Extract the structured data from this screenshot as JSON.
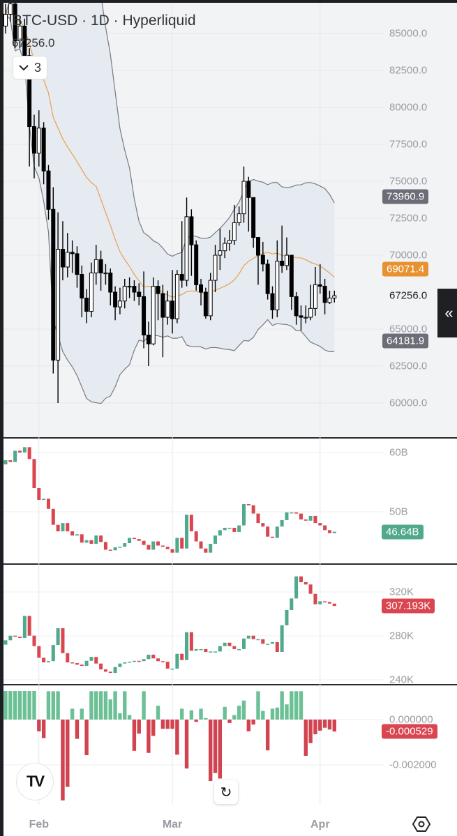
{
  "legend": {
    "title": "BTC-USD · 1D · Hyperliquid",
    "price": "67256.0",
    "collapse_count": "3"
  },
  "icons": {
    "collapse": "chevron-down-icon",
    "side": "double-chevron-left-icon",
    "logo": "tradingview-logo",
    "reset": "reset-icon",
    "settings": "settings-hexagon-icon"
  },
  "side_button_label": "«",
  "logo_text": "TV",
  "reset_glyph": "↻",
  "time_axis": [
    {
      "label": "Feb",
      "day": 7
    },
    {
      "label": "Mar",
      "day": 35
    },
    {
      "label": "Apr",
      "day": 66
    }
  ],
  "colors": {
    "bull_body": "#ffffff",
    "bear_body": "#000000",
    "basis": "#e8a04a",
    "bands": "#777a80",
    "band_fill": "#e6ebf2",
    "up": "#4fa98a",
    "down": "#d9464f",
    "hist_up": "#6cc096",
    "hist_down": "#d0434f",
    "upper_badge": "#6b6e76",
    "basis_badge": "#e8922f"
  },
  "chart_data": [
    {
      "type": "candlestick",
      "title": "BTC-USD · 1D · Hyperliquid",
      "ylim": [
        58500,
        87000
      ],
      "ticks": [
        "85000.0",
        "82500.0",
        "80000.0",
        "77500.0",
        "75000.0",
        "72500.0",
        "70000.0",
        "65000.0",
        "62500.0",
        "60000.0"
      ],
      "tick_values": [
        85000,
        82500,
        80000,
        77500,
        75000,
        72500,
        70000,
        65000,
        62500,
        60000
      ],
      "indicator": "Bollinger Bands",
      "badges": {
        "upper": "73960.9",
        "basis": "69071.4",
        "last": "67256.0",
        "lower": "64181.9"
      },
      "badge_values": {
        "upper": 73960.9,
        "basis": 69071.4,
        "last": 67256.0,
        "lower": 64181.9
      },
      "ohlc": [
        [
          85500,
          87000,
          85000,
          86300
        ],
        [
          86300,
          87800,
          85800,
          87000
        ],
        [
          87000,
          87200,
          84000,
          84500
        ],
        [
          84500,
          86000,
          84000,
          85500
        ],
        [
          85500,
          86000,
          82800,
          83500
        ],
        [
          83500,
          84000,
          76000,
          78700
        ],
        [
          78700,
          79500,
          75200,
          76900
        ],
        [
          76900,
          79800,
          76000,
          78600
        ],
        [
          78600,
          79000,
          74800,
          75700
        ],
        [
          75700,
          76100,
          72400,
          73100
        ],
        [
          73100,
          74600,
          62000,
          62900
        ],
        [
          62900,
          72900,
          60000,
          70400
        ],
        [
          70400,
          72300,
          68300,
          69200
        ],
        [
          69200,
          71500,
          68500,
          70200
        ],
        [
          70200,
          71000,
          68800,
          70100
        ],
        [
          70100,
          70600,
          67800,
          68700
        ],
        [
          68700,
          69300,
          65800,
          67100
        ],
        [
          67100,
          67700,
          65400,
          66200
        ],
        [
          66200,
          69500,
          65800,
          68800
        ],
        [
          68800,
          70700,
          68000,
          69700
        ],
        [
          69700,
          70300,
          67600,
          68800
        ],
        [
          68800,
          69400,
          68000,
          68800
        ],
        [
          68800,
          69100,
          66600,
          67500
        ],
        [
          67500,
          67900,
          65600,
          66500
        ],
        [
          66500,
          67800,
          66000,
          66900
        ],
        [
          66900,
          68400,
          66400,
          67900
        ],
        [
          67900,
          68500,
          67100,
          67900
        ],
        [
          67900,
          68300,
          66900,
          67500
        ],
        [
          67500,
          68100,
          66600,
          67200
        ],
        [
          67200,
          68900,
          63700,
          64600
        ],
        [
          64600,
          65500,
          62500,
          64000
        ],
        [
          64000,
          68500,
          63900,
          67900
        ],
        [
          67900,
          68300,
          65600,
          67400
        ],
        [
          67400,
          68000,
          63100,
          65800
        ],
        [
          65800,
          67600,
          65300,
          66900
        ],
        [
          66900,
          69000,
          64700,
          65700
        ],
        [
          65700,
          69000,
          65400,
          68700
        ],
        [
          68700,
          72300,
          67800,
          68300
        ],
        [
          68300,
          73900,
          67900,
          72600
        ],
        [
          72600,
          73100,
          68600,
          70700
        ],
        [
          70700,
          71000,
          67600,
          68000
        ],
        [
          68000,
          68400,
          66600,
          67500
        ],
        [
          67500,
          67800,
          65700,
          65900
        ],
        [
          65900,
          68800,
          65600,
          68300
        ],
        [
          68300,
          70700,
          67500,
          70000
        ],
        [
          70000,
          71800,
          69000,
          70300
        ],
        [
          70300,
          71200,
          69800,
          70800
        ],
        [
          70800,
          71700,
          70300,
          71000
        ],
        [
          71000,
          73400,
          70700,
          72200
        ],
        [
          72200,
          73300,
          72000,
          72800
        ],
        [
          72800,
          76000,
          72200,
          75000
        ],
        [
          75000,
          75300,
          71600,
          73900
        ],
        [
          73900,
          73900,
          70500,
          71200
        ],
        [
          71200,
          71200,
          68000,
          70000
        ],
        [
          70000,
          70900,
          68900,
          69400
        ],
        [
          69400,
          69700,
          67000,
          67400
        ],
        [
          67400,
          67900,
          65700,
          66300
        ],
        [
          66300,
          71000,
          65800,
          69600
        ],
        [
          69600,
          72000,
          68800,
          69300
        ],
        [
          69300,
          71200,
          69000,
          70000
        ],
        [
          70000,
          70000,
          66300,
          67200
        ],
        [
          67200,
          67500,
          65300,
          65900
        ],
        [
          65900,
          66600,
          64900,
          65800
        ],
        [
          65800,
          66600,
          65400,
          65800
        ],
        [
          65800,
          68000,
          65600,
          66400
        ],
        [
          66400,
          69200,
          65900,
          68000
        ],
        [
          68000,
          69400,
          67400,
          67900
        ],
        [
          67900,
          68400,
          66000,
          66800
        ],
        [
          66800,
          67600,
          66700,
          67100
        ],
        [
          67100,
          67600,
          66800,
          67256
        ]
      ]
    },
    {
      "type": "candlestick-closes",
      "unit": "B",
      "ticks": [
        "60B",
        "50B"
      ],
      "tick_values": [
        60,
        50
      ],
      "last_badge": "46.64B",
      "last_value": 46.64,
      "first_open": 58.0,
      "closes": [
        58.7,
        58.4,
        60.3,
        60,
        60.9,
        58.9,
        54,
        52,
        52.2,
        50.5,
        47.8,
        46.7,
        48.1,
        46.7,
        46,
        46.2,
        44.8,
        45.2,
        44.6,
        46,
        44.9,
        43.6,
        43.5,
        44,
        44.1,
        44.7,
        45.6,
        45.4,
        45.1,
        44.4,
        43.6,
        45,
        44.3,
        44.1,
        43.7,
        43.1,
        45.6,
        43.8,
        49.5,
        46.7,
        45,
        43.8,
        43.1,
        44.6,
        46,
        46.9,
        47.3,
        47.3,
        46.6,
        47.7,
        51.3,
        51.1,
        49.7,
        48.1,
        47.5,
        45.8,
        45.6,
        47.5,
        48.6,
        49.9,
        49.9,
        49.7,
        48.7,
        48.5,
        49.3,
        48.1,
        47.7,
        46.9,
        46.4,
        46.64
      ]
    },
    {
      "type": "candlestick-closes",
      "unit": "K",
      "ticks": [
        "320K",
        "280K",
        "240K"
      ],
      "tick_values": [
        320,
        280,
        240
      ],
      "last_badge": "307.193K",
      "last_value": 307.193,
      "first_open": 272,
      "closes": [
        276,
        280.2,
        279.2,
        278.1,
        298.2,
        280.2,
        270.7,
        260.1,
        255.9,
        257,
        271.7,
        287,
        264.3,
        255.9,
        255.2,
        253.8,
        252.7,
        257.3,
        260.8,
        254.8,
        249.5,
        247.4,
        246.3,
        251.6,
        254.8,
        255.9,
        256.5,
        257.3,
        257,
        258.9,
        262.9,
        259.5,
        257,
        256.5,
        250.2,
        250.2,
        263.7,
        258,
        283.4,
        266.5,
        268,
        268,
        265.4,
        265.8,
        265.8,
        270.7,
        273.8,
        270.7,
        268,
        268,
        277.6,
        280.2,
        277,
        277,
        272.8,
        272.8,
        274.3,
        265.4,
        289.7,
        303.5,
        314.1,
        334.2,
        328.9,
        326.8,
        318.3,
        308.8,
        311.5,
        310.9,
        309.4,
        307.193
      ]
    },
    {
      "type": "bar",
      "ticks": [
        "0.000000",
        "-0.002000"
      ],
      "tick_values": [
        0,
        -0.002
      ],
      "last_badge": "-0.000529",
      "last_value": -0.000529,
      "values": [
        0.00126,
        0.00126,
        0.00126,
        0.00126,
        0.00126,
        0.00126,
        0.00126,
        -0.00052,
        -0.00082,
        0.00125,
        0.00125,
        0.00125,
        -0.00357,
        -0.00297,
        0.00048,
        -0.00085,
        0.00048,
        -0.00157,
        0.00125,
        0.00125,
        0.00125,
        0.00125,
        0.00089,
        0.00125,
        0.00028,
        0.00125,
        0.0002,
        -0.00138,
        -0.00062,
        0.00125,
        -0.00147,
        -0.00072,
        0.00061,
        -0.00041,
        -0.00041,
        -0.00041,
        -0.00155,
        0.00048,
        -0.00216,
        0.00041,
        -0.0001,
        0.00048,
        7e-05,
        -0.00271,
        -0.00236,
        -0.0026,
        0.00056,
        -0.00015,
        0.0002,
        0.00061,
        0.00084,
        -0.00052,
        -0.00022,
        0.00125,
        0.00038,
        -0.00136,
        0.00048,
        0.00053,
        0.00125,
        0.00067,
        0.00125,
        0.00125,
        0.00125,
        -0.0016,
        -0.00104,
        -0.00065,
        -0.00049,
        -0.00036,
        -0.00044,
        -0.000529
      ]
    }
  ]
}
